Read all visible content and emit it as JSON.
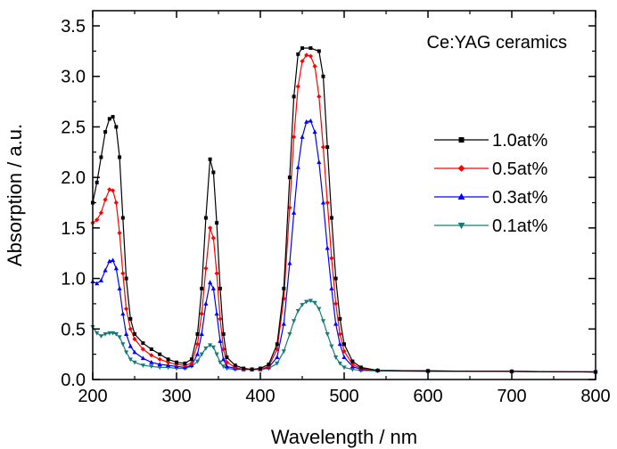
{
  "chart_data": {
    "type": "line",
    "title": "",
    "annotation": "Ce:YAG ceramics",
    "xlabel": "Wavelength / nm",
    "ylabel": "Absorption / a.u.",
    "xlim": [
      200,
      800
    ],
    "ylim": [
      0,
      3.65
    ],
    "x_ticks": [
      200,
      300,
      400,
      500,
      600,
      700,
      800
    ],
    "y_ticks": [
      0.0,
      0.5,
      1.0,
      1.5,
      2.0,
      2.5,
      3.0,
      3.5
    ],
    "x_tick_labels": [
      "200",
      "300",
      "400",
      "500",
      "600",
      "700",
      "800"
    ],
    "y_tick_labels": [
      "0.0",
      "0.5",
      "1.0",
      "1.5",
      "2.0",
      "2.5",
      "3.0",
      "3.5"
    ],
    "grid": false,
    "legend_position": "right",
    "series": [
      {
        "name": "1.0at%",
        "color": "#000000",
        "marker": "square",
        "points": [
          [
            200,
            1.75
          ],
          [
            205,
            1.95
          ],
          [
            210,
            2.2
          ],
          [
            215,
            2.45
          ],
          [
            220,
            2.58
          ],
          [
            224,
            2.6
          ],
          [
            228,
            2.5
          ],
          [
            232,
            2.2
          ],
          [
            236,
            1.6
          ],
          [
            240,
            1.0
          ],
          [
            245,
            0.6
          ],
          [
            250,
            0.45
          ],
          [
            260,
            0.36
          ],
          [
            270,
            0.3
          ],
          [
            280,
            0.25
          ],
          [
            290,
            0.2
          ],
          [
            300,
            0.17
          ],
          [
            310,
            0.16
          ],
          [
            318,
            0.2
          ],
          [
            325,
            0.45
          ],
          [
            330,
            0.9
          ],
          [
            335,
            1.6
          ],
          [
            340,
            2.18
          ],
          [
            344,
            2.05
          ],
          [
            348,
            1.55
          ],
          [
            352,
            0.9
          ],
          [
            356,
            0.45
          ],
          [
            360,
            0.22
          ],
          [
            370,
            0.14
          ],
          [
            380,
            0.11
          ],
          [
            390,
            0.1
          ],
          [
            400,
            0.11
          ],
          [
            410,
            0.15
          ],
          [
            420,
            0.35
          ],
          [
            428,
            0.9
          ],
          [
            435,
            2.0
          ],
          [
            440,
            2.8
          ],
          [
            445,
            3.22
          ],
          [
            450,
            3.28
          ],
          [
            460,
            3.28
          ],
          [
            470,
            3.25
          ],
          [
            475,
            3.0
          ],
          [
            480,
            2.3
          ],
          [
            485,
            1.6
          ],
          [
            490,
            1.0
          ],
          [
            495,
            0.6
          ],
          [
            500,
            0.35
          ],
          [
            510,
            0.18
          ],
          [
            520,
            0.12
          ],
          [
            540,
            0.09
          ],
          [
            600,
            0.085
          ],
          [
            700,
            0.08
          ],
          [
            800,
            0.075
          ]
        ]
      },
      {
        "name": "0.5at%",
        "color": "#ff0000",
        "marker": "diamond",
        "points": [
          [
            200,
            1.55
          ],
          [
            205,
            1.58
          ],
          [
            210,
            1.65
          ],
          [
            215,
            1.78
          ],
          [
            220,
            1.88
          ],
          [
            224,
            1.87
          ],
          [
            228,
            1.75
          ],
          [
            232,
            1.45
          ],
          [
            236,
            1.05
          ],
          [
            240,
            0.7
          ],
          [
            245,
            0.5
          ],
          [
            250,
            0.4
          ],
          [
            260,
            0.3
          ],
          [
            270,
            0.24
          ],
          [
            280,
            0.2
          ],
          [
            290,
            0.17
          ],
          [
            300,
            0.15
          ],
          [
            310,
            0.14
          ],
          [
            318,
            0.16
          ],
          [
            325,
            0.35
          ],
          [
            330,
            0.65
          ],
          [
            335,
            1.1
          ],
          [
            340,
            1.5
          ],
          [
            344,
            1.4
          ],
          [
            348,
            1.05
          ],
          [
            352,
            0.6
          ],
          [
            356,
            0.3
          ],
          [
            360,
            0.17
          ],
          [
            370,
            0.12
          ],
          [
            380,
            0.1
          ],
          [
            390,
            0.1
          ],
          [
            400,
            0.1
          ],
          [
            410,
            0.13
          ],
          [
            420,
            0.3
          ],
          [
            428,
            0.8
          ],
          [
            435,
            1.7
          ],
          [
            440,
            2.4
          ],
          [
            445,
            2.9
          ],
          [
            450,
            3.15
          ],
          [
            455,
            3.21
          ],
          [
            460,
            3.2
          ],
          [
            465,
            3.1
          ],
          [
            470,
            2.8
          ],
          [
            475,
            2.3
          ],
          [
            480,
            1.75
          ],
          [
            485,
            1.2
          ],
          [
            490,
            0.75
          ],
          [
            495,
            0.45
          ],
          [
            500,
            0.28
          ],
          [
            510,
            0.15
          ],
          [
            520,
            0.11
          ],
          [
            540,
            0.09
          ],
          [
            600,
            0.085
          ],
          [
            700,
            0.08
          ],
          [
            800,
            0.075
          ]
        ]
      },
      {
        "name": "0.3at%",
        "color": "#0000ff",
        "marker": "triangle-up",
        "points": [
          [
            200,
            0.97
          ],
          [
            205,
            0.95
          ],
          [
            210,
            0.98
          ],
          [
            215,
            1.08
          ],
          [
            220,
            1.17
          ],
          [
            224,
            1.18
          ],
          [
            228,
            1.1
          ],
          [
            232,
            0.9
          ],
          [
            236,
            0.65
          ],
          [
            240,
            0.45
          ],
          [
            245,
            0.33
          ],
          [
            250,
            0.27
          ],
          [
            260,
            0.21
          ],
          [
            270,
            0.17
          ],
          [
            280,
            0.15
          ],
          [
            290,
            0.14
          ],
          [
            300,
            0.13
          ],
          [
            310,
            0.12
          ],
          [
            318,
            0.14
          ],
          [
            325,
            0.25
          ],
          [
            330,
            0.45
          ],
          [
            335,
            0.75
          ],
          [
            340,
            0.96
          ],
          [
            344,
            0.9
          ],
          [
            348,
            0.65
          ],
          [
            352,
            0.38
          ],
          [
            356,
            0.2
          ],
          [
            360,
            0.13
          ],
          [
            370,
            0.11
          ],
          [
            380,
            0.1
          ],
          [
            390,
            0.1
          ],
          [
            400,
            0.1
          ],
          [
            410,
            0.12
          ],
          [
            420,
            0.22
          ],
          [
            428,
            0.55
          ],
          [
            435,
            1.15
          ],
          [
            440,
            1.65
          ],
          [
            445,
            2.1
          ],
          [
            450,
            2.4
          ],
          [
            455,
            2.55
          ],
          [
            460,
            2.56
          ],
          [
            465,
            2.45
          ],
          [
            470,
            2.15
          ],
          [
            475,
            1.75
          ],
          [
            480,
            1.3
          ],
          [
            485,
            0.9
          ],
          [
            490,
            0.55
          ],
          [
            495,
            0.35
          ],
          [
            500,
            0.22
          ],
          [
            510,
            0.13
          ],
          [
            520,
            0.1
          ],
          [
            540,
            0.09
          ],
          [
            600,
            0.085
          ],
          [
            700,
            0.08
          ],
          [
            800,
            0.075
          ]
        ]
      },
      {
        "name": "0.1at%",
        "color": "#1a7a7a",
        "marker": "triangle-down",
        "points": [
          [
            200,
            0.52
          ],
          [
            205,
            0.46
          ],
          [
            210,
            0.43
          ],
          [
            215,
            0.45
          ],
          [
            220,
            0.46
          ],
          [
            224,
            0.46
          ],
          [
            228,
            0.45
          ],
          [
            232,
            0.42
          ],
          [
            236,
            0.35
          ],
          [
            240,
            0.27
          ],
          [
            245,
            0.2
          ],
          [
            250,
            0.17
          ],
          [
            260,
            0.14
          ],
          [
            270,
            0.13
          ],
          [
            280,
            0.12
          ],
          [
            290,
            0.12
          ],
          [
            300,
            0.11
          ],
          [
            310,
            0.11
          ],
          [
            318,
            0.13
          ],
          [
            325,
            0.18
          ],
          [
            330,
            0.25
          ],
          [
            335,
            0.31
          ],
          [
            340,
            0.34
          ],
          [
            344,
            0.32
          ],
          [
            348,
            0.25
          ],
          [
            352,
            0.17
          ],
          [
            356,
            0.13
          ],
          [
            360,
            0.11
          ],
          [
            370,
            0.1
          ],
          [
            380,
            0.1
          ],
          [
            390,
            0.1
          ],
          [
            400,
            0.1
          ],
          [
            410,
            0.11
          ],
          [
            420,
            0.16
          ],
          [
            428,
            0.28
          ],
          [
            435,
            0.45
          ],
          [
            440,
            0.58
          ],
          [
            445,
            0.68
          ],
          [
            450,
            0.74
          ],
          [
            455,
            0.77
          ],
          [
            460,
            0.78
          ],
          [
            465,
            0.76
          ],
          [
            470,
            0.7
          ],
          [
            475,
            0.58
          ],
          [
            480,
            0.45
          ],
          [
            485,
            0.33
          ],
          [
            490,
            0.22
          ],
          [
            495,
            0.16
          ],
          [
            500,
            0.12
          ],
          [
            510,
            0.1
          ],
          [
            520,
            0.09
          ],
          [
            540,
            0.085
          ],
          [
            600,
            0.08
          ],
          [
            700,
            0.08
          ],
          [
            800,
            0.075
          ]
        ]
      }
    ]
  }
}
